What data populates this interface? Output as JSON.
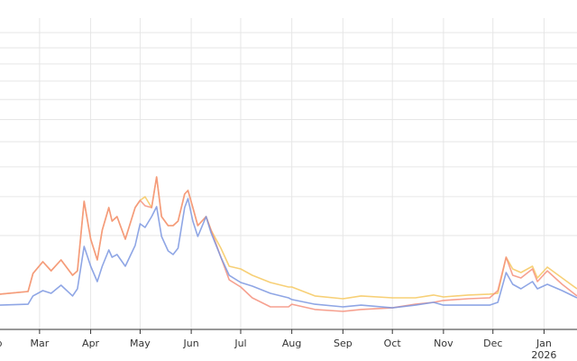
{
  "chart_data": {
    "type": "line",
    "title": "",
    "xlabel": "",
    "ylabel": "",
    "y_scale": "sqrt",
    "y_gridlines": [
      1,
      2,
      3,
      4,
      5,
      6,
      7,
      8,
      9,
      10
    ],
    "y_tick_labels_visible": false,
    "grid": true,
    "x_range": [
      "2025-02-05",
      "2026-01-21"
    ],
    "x_ticks": [
      {
        "date": "2025-02-01",
        "label": "Feb"
      },
      {
        "date": "2025-03-01",
        "label": "Mar"
      },
      {
        "date": "2025-04-01",
        "label": "Apr"
      },
      {
        "date": "2025-05-01",
        "label": "May"
      },
      {
        "date": "2025-06-01",
        "label": "Jun"
      },
      {
        "date": "2025-07-01",
        "label": "Jul"
      },
      {
        "date": "2025-08-01",
        "label": "Aug"
      },
      {
        "date": "2025-09-01",
        "label": "Sep"
      },
      {
        "date": "2025-10-01",
        "label": "Oct"
      },
      {
        "date": "2025-11-01",
        "label": "Nov"
      },
      {
        "date": "2025-12-01",
        "label": "Dec"
      },
      {
        "date": "2026-01-01",
        "label": "Jan",
        "sublabel": "2026"
      }
    ],
    "x": [
      "2025-02-05",
      "2025-02-22",
      "2025-02-25",
      "2025-03-03",
      "2025-03-08",
      "2025-03-14",
      "2025-03-21",
      "2025-03-24",
      "2025-03-28",
      "2025-04-01",
      "2025-04-05",
      "2025-04-08",
      "2025-04-12",
      "2025-04-14",
      "2025-04-17",
      "2025-04-22",
      "2025-04-28",
      "2025-05-01",
      "2025-05-04",
      "2025-05-08",
      "2025-05-11",
      "2025-05-14",
      "2025-05-18",
      "2025-05-21",
      "2025-05-24",
      "2025-05-28",
      "2025-05-30",
      "2025-06-02",
      "2025-06-05",
      "2025-06-10",
      "2025-06-13",
      "2025-06-19",
      "2025-06-24",
      "2025-07-01",
      "2025-07-08",
      "2025-07-19",
      "2025-07-30",
      "2025-08-01",
      "2025-08-15",
      "2025-09-01",
      "2025-09-12",
      "2025-10-01",
      "2025-10-15",
      "2025-10-26",
      "2025-11-01",
      "2025-11-16",
      "2025-11-29",
      "2025-12-04",
      "2025-12-09",
      "2025-12-13",
      "2025-12-18",
      "2025-12-25",
      "2025-12-28",
      "2026-01-03",
      "2026-01-12",
      "2026-01-21"
    ],
    "series": [
      {
        "color": "#f6c85f",
        "values": [
          0.141,
          0.163,
          0.355,
          0.52,
          0.39,
          0.548,
          0.333,
          0.39,
          1.864,
          0.925,
          0.548,
          1.119,
          1.685,
          1.331,
          1.445,
          0.925,
          1.685,
          1.891,
          1.998,
          1.685,
          2.64,
          1.445,
          1.223,
          1.223,
          1.331,
          2.08,
          2.193,
          1.685,
          1.223,
          1.445,
          1.119,
          0.749,
          0.453,
          0.415,
          0.333,
          0.25,
          0.204,
          0.204,
          0.127,
          0.107,
          0.127,
          0.113,
          0.113,
          0.134,
          0.12,
          0.134,
          0.141,
          0.148,
          0.592,
          0.415,
          0.367,
          0.453,
          0.3,
          0.44,
          0.3,
          0.187
        ]
      },
      {
        "color": "#f4907d",
        "values": [
          0.141,
          0.163,
          0.355,
          0.52,
          0.39,
          0.548,
          0.333,
          0.39,
          1.864,
          0.925,
          0.548,
          1.119,
          1.685,
          1.331,
          1.445,
          0.925,
          1.685,
          1.891,
          1.735,
          1.685,
          2.64,
          1.445,
          1.223,
          1.223,
          1.331,
          2.08,
          2.193,
          1.685,
          1.223,
          1.445,
          1.119,
          0.592,
          0.28,
          0.204,
          0.113,
          0.058,
          0.058,
          0.072,
          0.045,
          0.037,
          0.045,
          0.053,
          0.072,
          0.083,
          0.095,
          0.107,
          0.113,
          0.171,
          0.592,
          0.333,
          0.3,
          0.415,
          0.26,
          0.39,
          0.231,
          0.127
        ]
      },
      {
        "color": "#7b97e0",
        "values": [
          0.067,
          0.072,
          0.127,
          0.171,
          0.148,
          0.222,
          0.127,
          0.187,
          0.783,
          0.453,
          0.26,
          0.453,
          0.716,
          0.592,
          0.637,
          0.453,
          0.8,
          1.266,
          1.18,
          1.445,
          1.71,
          0.981,
          0.7,
          0.637,
          0.749,
          1.685,
          1.944,
          1.331,
          0.981,
          1.445,
          1.058,
          0.592,
          0.333,
          0.25,
          0.213,
          0.148,
          0.113,
          0.101,
          0.072,
          0.058,
          0.067,
          0.053,
          0.067,
          0.083,
          0.067,
          0.067,
          0.067,
          0.083,
          0.367,
          0.231,
          0.187,
          0.26,
          0.187,
          0.231,
          0.171,
          0.113
        ]
      }
    ]
  }
}
